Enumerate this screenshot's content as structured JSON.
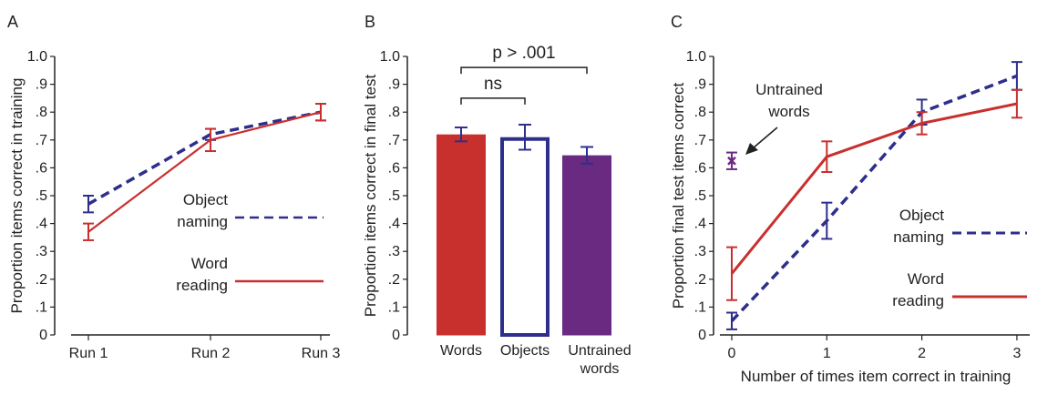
{
  "chart_data": [
    {
      "panel": "A",
      "type": "line",
      "title": "",
      "xlabel": "",
      "ylabel": "Proportion items correct in training",
      "categories": [
        "Run 1",
        "Run 2",
        "Run 3"
      ],
      "ylim": [
        0,
        1.0
      ],
      "yticks": [
        "0",
        ".1",
        ".2",
        ".3",
        ".4",
        ".5",
        ".6",
        ".7",
        ".8",
        ".9",
        "1.0"
      ],
      "legend_placement": "center-right",
      "series": [
        {
          "name": "Object naming",
          "style": "dashed",
          "color": "#2e2e8c",
          "values": [
            0.47,
            0.72,
            0.8
          ],
          "err": [
            0.03,
            0.02,
            0.03
          ]
        },
        {
          "name": "Word reading",
          "style": "solid",
          "color": "#c8302e",
          "values": [
            0.37,
            0.7,
            0.8
          ],
          "err": [
            0.03,
            0.04,
            0.03
          ]
        }
      ],
      "legend": [
        {
          "line1": "Object",
          "line2": "naming"
        },
        {
          "line1": "Word",
          "line2": "reading"
        }
      ]
    },
    {
      "panel": "B",
      "type": "bar",
      "title": "",
      "xlabel": "",
      "ylabel": "Proportion items correct in final test",
      "categories": [
        "Words",
        "Objects",
        "Untrained words"
      ],
      "category_lines": [
        [
          "Words"
        ],
        [
          "Objects"
        ],
        [
          "Untrained",
          "words"
        ]
      ],
      "ylim": [
        0,
        1.0
      ],
      "yticks": [
        "0",
        ".1",
        ".2",
        ".3",
        ".4",
        ".5",
        ".6",
        ".7",
        ".8",
        ".9",
        "1.0"
      ],
      "values": [
        0.72,
        0.71,
        0.645
      ],
      "err": [
        0.025,
        0.045,
        0.03
      ],
      "bar_styles": [
        {
          "fill": "#c8302e",
          "stroke": "#c8302e"
        },
        {
          "fill": "#ffffff",
          "stroke": "#2e2e8c"
        },
        {
          "fill": "#6b2a82",
          "stroke": "#6b2a82"
        }
      ],
      "annotations": [
        {
          "text": "ns",
          "from": 0,
          "to": 1,
          "level": 0.85
        },
        {
          "text": "p > .001",
          "from": 0,
          "to": 2,
          "level": 0.97
        }
      ]
    },
    {
      "panel": "C",
      "type": "line",
      "title": "",
      "xlabel": "Number of times item correct in training",
      "ylabel": "Proportion final test items correct",
      "x": [
        0,
        1,
        2,
        3
      ],
      "xticks": [
        "0",
        "1",
        "2",
        "3"
      ],
      "ylim": [
        0,
        1.0
      ],
      "yticks": [
        "0",
        ".1",
        ".2",
        ".3",
        ".4",
        ".5",
        ".6",
        ".7",
        ".8",
        ".9",
        "1.0"
      ],
      "legend_placement": "center-right",
      "series": [
        {
          "name": "Object naming",
          "style": "dashed",
          "color": "#2e2e8c",
          "values": [
            0.05,
            0.41,
            0.8,
            0.93
          ],
          "err": [
            0.03,
            0.065,
            0.045,
            0.05
          ]
        },
        {
          "name": "Word reading",
          "style": "solid",
          "color": "#c8302e",
          "values": [
            0.22,
            0.64,
            0.76,
            0.83
          ],
          "err": [
            0.095,
            0.055,
            0.04,
            0.05
          ]
        }
      ],
      "untrained_point": {
        "x": 0,
        "y": 0.625,
        "err": 0.03,
        "color": "#6b2a82"
      },
      "annotation": {
        "line1": "Untrained",
        "line2": "words"
      },
      "legend": [
        {
          "line1": "Object",
          "line2": "naming"
        },
        {
          "line1": "Word",
          "line2": "reading"
        }
      ]
    }
  ]
}
